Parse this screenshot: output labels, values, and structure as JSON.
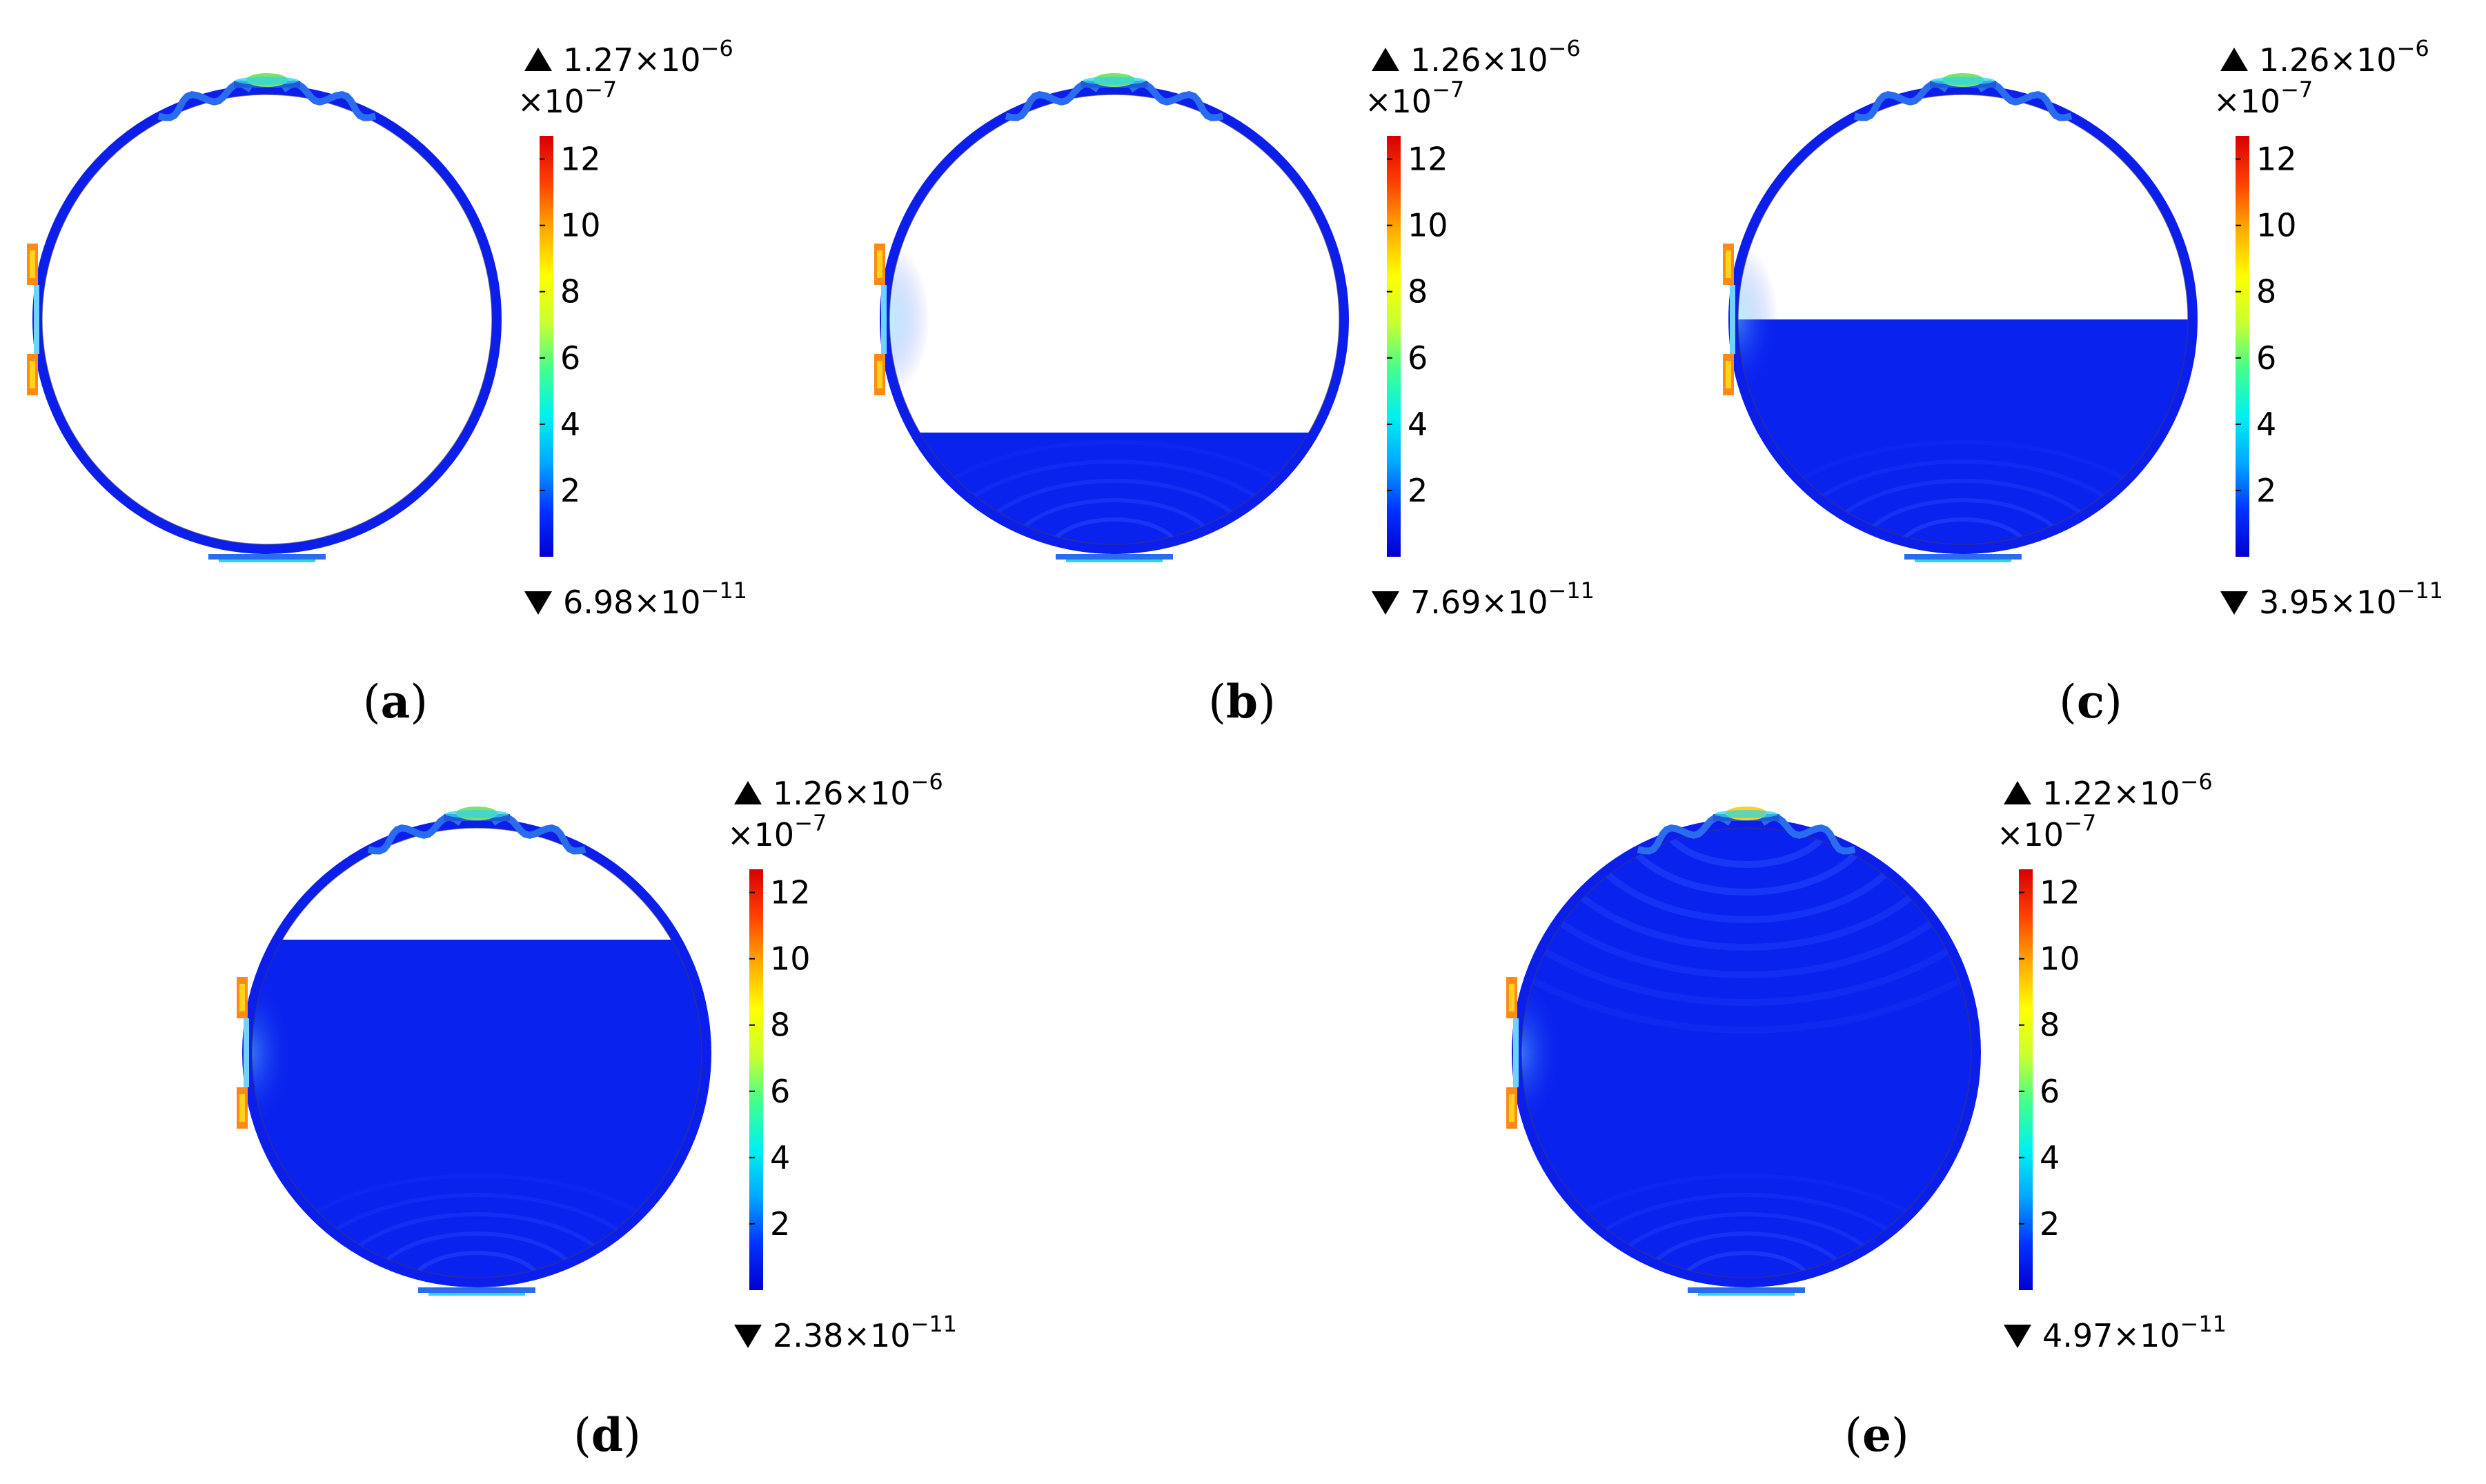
{
  "figure": {
    "colorbar_multiplier": {
      "base": "×10",
      "exp": "−7"
    },
    "colorbar_ticks": [
      "2",
      "4",
      "6",
      "8",
      "10",
      "12"
    ],
    "colors": {
      "field_blue": "#0a22ee",
      "ring_blue": "#0c1eea",
      "transducer_cyan": "#2fd4e6",
      "transducer_green": "#7fe36a",
      "emitter_orange": "#ff8a1a",
      "emitter_yellow": "#ffd21c",
      "colormap": [
        "#0000d0",
        "#0033ff",
        "#00a8ff",
        "#00f0f0",
        "#40ff90",
        "#c8ff30",
        "#ffff00",
        "#ffaa00",
        "#ff4000",
        "#d80000"
      ]
    },
    "panels": [
      {
        "id": "a",
        "label": "a",
        "fill_fraction": 0.0,
        "max_mantissa": "1.27",
        "max_exp": "−6",
        "min_mantissa": "6.98",
        "min_exp": "−11"
      },
      {
        "id": "b",
        "label": "b",
        "fill_fraction": 0.25,
        "max_mantissa": "1.26",
        "max_exp": "−6",
        "min_mantissa": "7.69",
        "min_exp": "−11"
      },
      {
        "id": "c",
        "label": "c",
        "fill_fraction": 0.5,
        "max_mantissa": "1.26",
        "max_exp": "−6",
        "min_mantissa": "3.95",
        "min_exp": "−11"
      },
      {
        "id": "d",
        "label": "d",
        "fill_fraction": 0.75,
        "max_mantissa": "1.26",
        "max_exp": "−6",
        "min_mantissa": "2.38",
        "min_exp": "−11"
      },
      {
        "id": "e",
        "label": "e",
        "fill_fraction": 1.0,
        "max_mantissa": "1.22",
        "max_exp": "−6",
        "min_mantissa": "4.97",
        "min_exp": "−11"
      }
    ]
  }
}
